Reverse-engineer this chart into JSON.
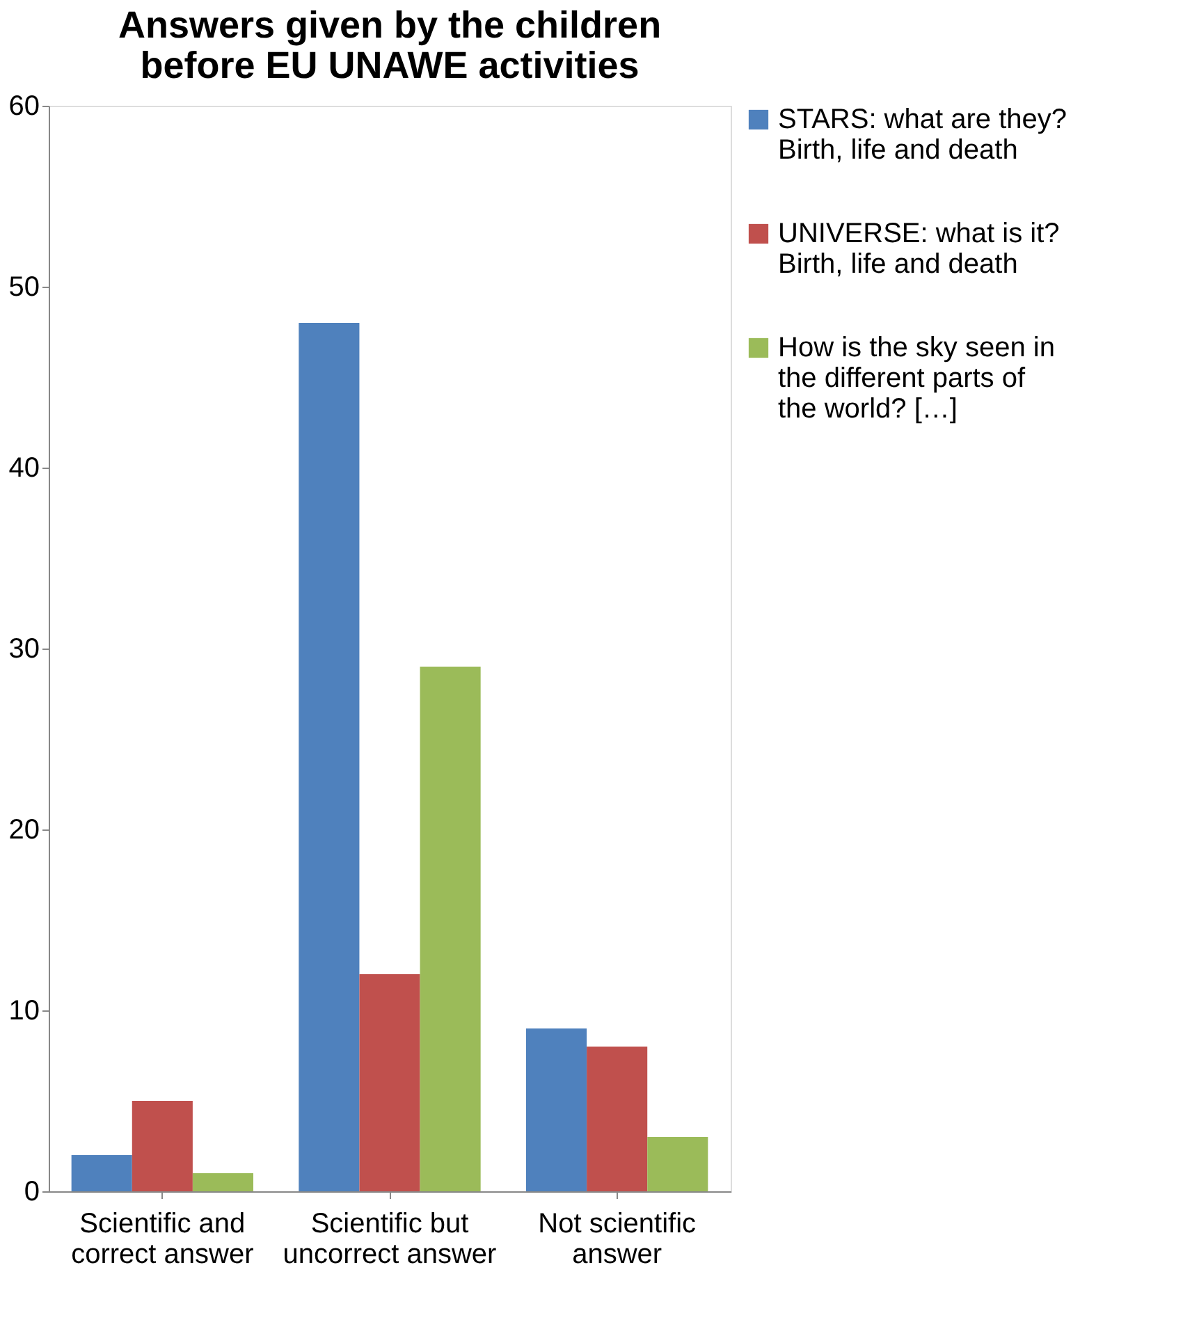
{
  "chart_data": {
    "type": "bar",
    "title": "Answers given by the children before EU UNAWE activities",
    "categories": [
      "Scientific and correct answer",
      "Scientific but uncorrect answer",
      "Not scientific answer"
    ],
    "series": [
      {
        "name": "STARS: what are they? Birth, life and death",
        "color": "#4f81bd",
        "values": [
          2,
          48,
          9
        ]
      },
      {
        "name": "UNIVERSE: what is it? Birth, life and death",
        "color": "#c0504d",
        "values": [
          5,
          12,
          8
        ]
      },
      {
        "name": "How is the sky seen in the different parts of the world? […]",
        "color": "#9bbb59",
        "values": [
          1,
          29,
          3
        ]
      }
    ],
    "ylim": [
      0,
      60
    ],
    "yticks": [
      0,
      10,
      20,
      30,
      40,
      50,
      60
    ],
    "grid": false,
    "legend": "right"
  }
}
